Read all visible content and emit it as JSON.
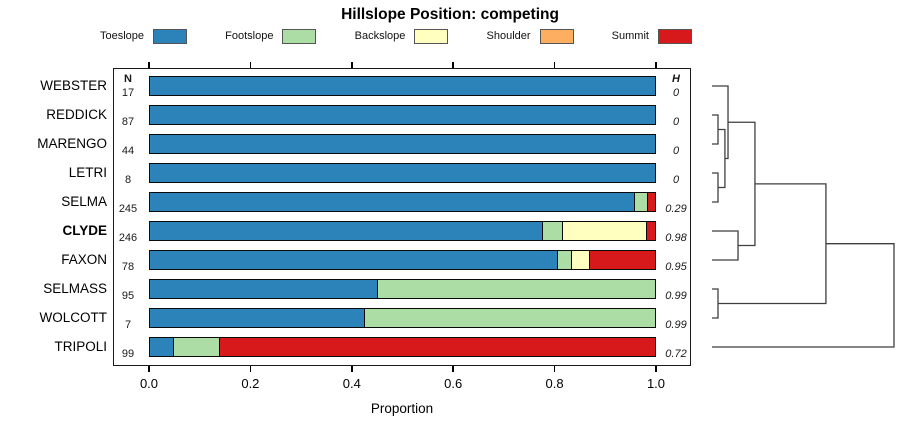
{
  "figure": {
    "title": "Hillslope Position: competing",
    "x_axis_label": "Proportion",
    "n_column_header": "N",
    "h_column_header": "H"
  },
  "legend": {
    "items": [
      {
        "label": "Toeslope",
        "color": "#2B83BA"
      },
      {
        "label": "Footslope",
        "color": "#ABDDA4"
      },
      {
        "label": "Backslope",
        "color": "#FFFFBF"
      },
      {
        "label": "Shoulder",
        "color": "#FDAE61"
      },
      {
        "label": "Summit",
        "color": "#D7191C"
      }
    ]
  },
  "chart_data": {
    "type": "bar",
    "variant": "horizontal-stacked-proportion",
    "title": "Hillslope Position: competing",
    "xlabel": "Proportion",
    "xlim": [
      0,
      1
    ],
    "x_ticks": [
      "0.0",
      "0.2",
      "0.4",
      "0.6",
      "0.8",
      "1.0"
    ],
    "grid": false,
    "legend_position": "top",
    "categories": [
      "Toeslope",
      "Footslope",
      "Backslope",
      "Shoulder",
      "Summit"
    ],
    "colors": {
      "Toeslope": "#2B83BA",
      "Footslope": "#ABDDA4",
      "Backslope": "#FFFFBF",
      "Shoulder": "#FDAE61",
      "Summit": "#D7191C"
    },
    "rows": [
      {
        "name": "WEBSTER",
        "bold": false,
        "n": "17",
        "h": "0",
        "segments": [
          {
            "cat": "Toeslope",
            "value": 1.0
          }
        ]
      },
      {
        "name": "REDDICK",
        "bold": false,
        "n": "87",
        "h": "0",
        "segments": [
          {
            "cat": "Toeslope",
            "value": 1.0
          }
        ]
      },
      {
        "name": "MARENGO",
        "bold": false,
        "n": "44",
        "h": "0",
        "segments": [
          {
            "cat": "Toeslope",
            "value": 1.0
          }
        ]
      },
      {
        "name": "LETRI",
        "bold": false,
        "n": "8",
        "h": "0",
        "segments": [
          {
            "cat": "Toeslope",
            "value": 1.0
          }
        ]
      },
      {
        "name": "SELMA",
        "bold": false,
        "n": "245",
        "h": "0.29",
        "segments": [
          {
            "cat": "Toeslope",
            "value": 0.96
          },
          {
            "cat": "Footslope",
            "value": 0.025
          },
          {
            "cat": "Summit",
            "value": 0.015
          }
        ]
      },
      {
        "name": "CLYDE",
        "bold": true,
        "n": "246",
        "h": "0.98",
        "segments": [
          {
            "cat": "Toeslope",
            "value": 0.779
          },
          {
            "cat": "Footslope",
            "value": 0.038
          },
          {
            "cat": "Backslope",
            "value": 0.167
          },
          {
            "cat": "Summit",
            "value": 0.016
          }
        ]
      },
      {
        "name": "FAXON",
        "bold": false,
        "n": "78",
        "h": "0.95",
        "segments": [
          {
            "cat": "Toeslope",
            "value": 0.807
          },
          {
            "cat": "Footslope",
            "value": 0.028
          },
          {
            "cat": "Backslope",
            "value": 0.035
          },
          {
            "cat": "Summit",
            "value": 0.13
          }
        ]
      },
      {
        "name": "SELMASS",
        "bold": false,
        "n": "95",
        "h": "0.99",
        "segments": [
          {
            "cat": "Toeslope",
            "value": 0.452
          },
          {
            "cat": "Footslope",
            "value": 0.548
          }
        ]
      },
      {
        "name": "WOLCOTT",
        "bold": false,
        "n": "7",
        "h": "0.99",
        "segments": [
          {
            "cat": "Toeslope",
            "value": 0.427
          },
          {
            "cat": "Footslope",
            "value": 0.573
          }
        ]
      },
      {
        "name": "TRIPOLI",
        "bold": false,
        "n": "99",
        "h": "0.72",
        "segments": [
          {
            "cat": "Toeslope",
            "value": 0.051
          },
          {
            "cat": "Footslope",
            "value": 0.091
          },
          {
            "cat": "Summit",
            "value": 0.858
          }
        ]
      }
    ],
    "dendrogram": {
      "orientation": "right",
      "merges": [
        {
          "a": "REDDICK",
          "b": "MARENGO",
          "height": 0.033
        },
        {
          "a": "LETRI",
          "b": "SELMA",
          "height": 0.033
        },
        {
          "a": "#0",
          "b": "#1",
          "height": 0.071
        },
        {
          "a": "WEBSTER",
          "b": "#2",
          "height": 0.088
        },
        {
          "a": "CLYDE",
          "b": "FAXON",
          "height": 0.143
        },
        {
          "a": "#3",
          "b": "#4",
          "height": 0.236
        },
        {
          "a": "SELMASS",
          "b": "WOLCOTT",
          "height": 0.033
        },
        {
          "a": "#5",
          "b": "#6",
          "height": 0.626
        },
        {
          "a": "#7",
          "b": "TRIPOLI",
          "height": 1.0
        }
      ]
    }
  }
}
